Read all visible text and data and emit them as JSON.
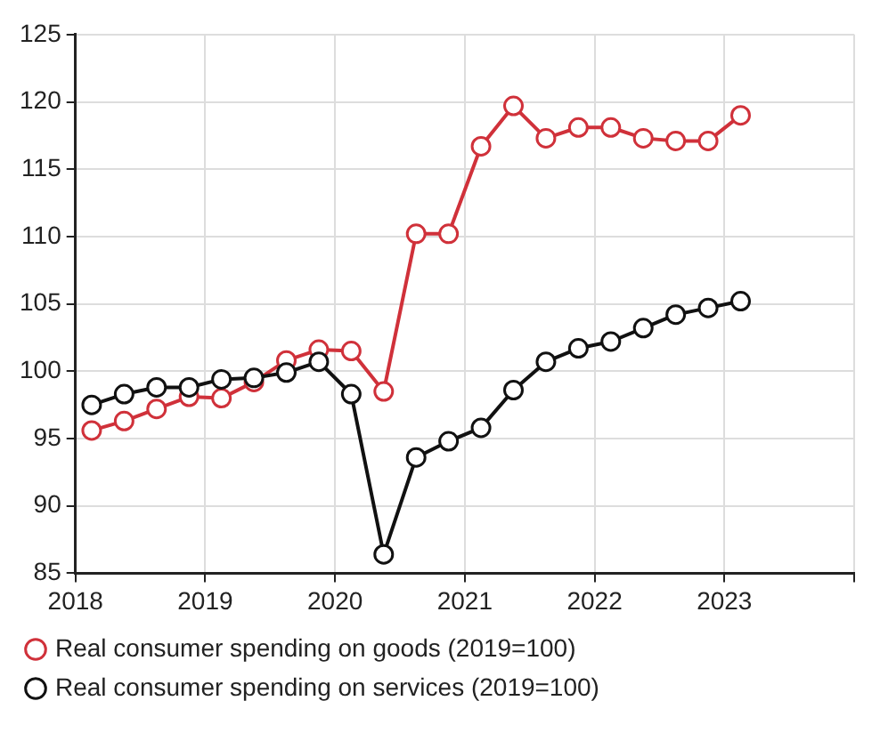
{
  "chart_data": {
    "type": "line",
    "x": [
      2018.125,
      2018.375,
      2018.625,
      2018.875,
      2019.125,
      2019.375,
      2019.625,
      2019.875,
      2020.125,
      2020.375,
      2020.625,
      2020.875,
      2021.125,
      2021.375,
      2021.625,
      2021.875,
      2022.125,
      2022.375,
      2022.625,
      2022.875,
      2023.125
    ],
    "series": [
      {
        "name": "Real consumer spending on goods (2019=100)",
        "color": "#d0313a",
        "values": [
          95.6,
          96.3,
          97.2,
          98.1,
          98.0,
          99.2,
          100.8,
          101.6,
          101.5,
          98.5,
          110.2,
          110.2,
          116.7,
          119.7,
          117.3,
          118.1,
          118.1,
          117.3,
          117.1,
          117.1,
          119.0
        ]
      },
      {
        "name": "Real consumer spending on services (2019=100)",
        "color": "#111111",
        "values": [
          97.5,
          98.3,
          98.8,
          98.8,
          99.4,
          99.5,
          99.9,
          100.7,
          98.3,
          86.4,
          93.6,
          94.8,
          95.8,
          98.6,
          100.7,
          101.7,
          102.2,
          103.2,
          104.2,
          104.7,
          105.2
        ]
      }
    ],
    "xlim": [
      2018,
      2024
    ],
    "xticks": [
      2018,
      2019,
      2020,
      2021,
      2022,
      2023,
      {
        "value": 2024,
        "label": null
      }
    ],
    "ylim": [
      85,
      125
    ],
    "yticks": [
      85,
      90,
      95,
      100,
      105,
      110,
      115,
      120,
      125
    ],
    "grid": true,
    "legend": "bottom",
    "marker": "circle",
    "line_style": "solid"
  }
}
